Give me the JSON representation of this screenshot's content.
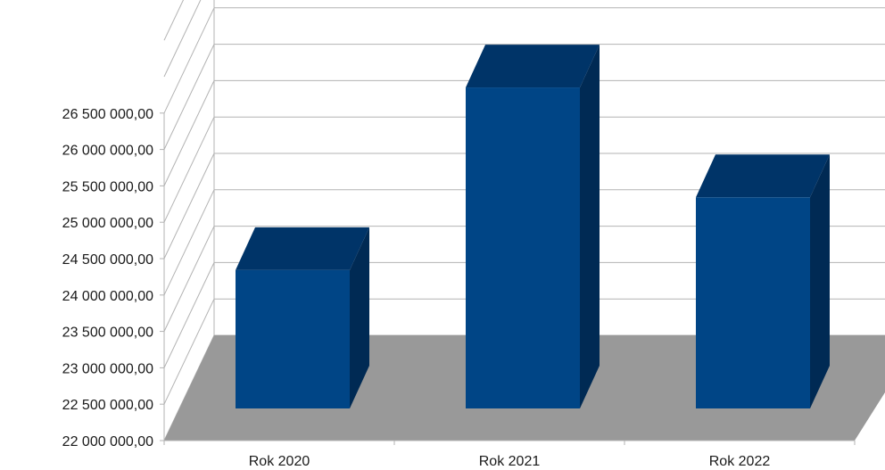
{
  "chart_data": {
    "type": "bar",
    "style": "3d-column",
    "categories": [
      "Rok 2020",
      "Rok 2021",
      "Rok 2022"
    ],
    "values": [
      23950000,
      26460000,
      24950000
    ],
    "yticks": [
      "22 000 000,00",
      "22 500 000,00",
      "23 000 000,00",
      "23 500 000,00",
      "24 000 000,00",
      "24 500 000,00",
      "25 000 000,00",
      "25 500 000,00",
      "26 000 000,00",
      "26 500 000,00"
    ],
    "ylim": [
      22000000,
      26500000
    ],
    "grid": true,
    "colors": {
      "bar_front": "#004586",
      "bar_top": "#003468",
      "bar_side": "#002a54",
      "floor": "#999999",
      "grid": "#b3b3b3"
    }
  }
}
